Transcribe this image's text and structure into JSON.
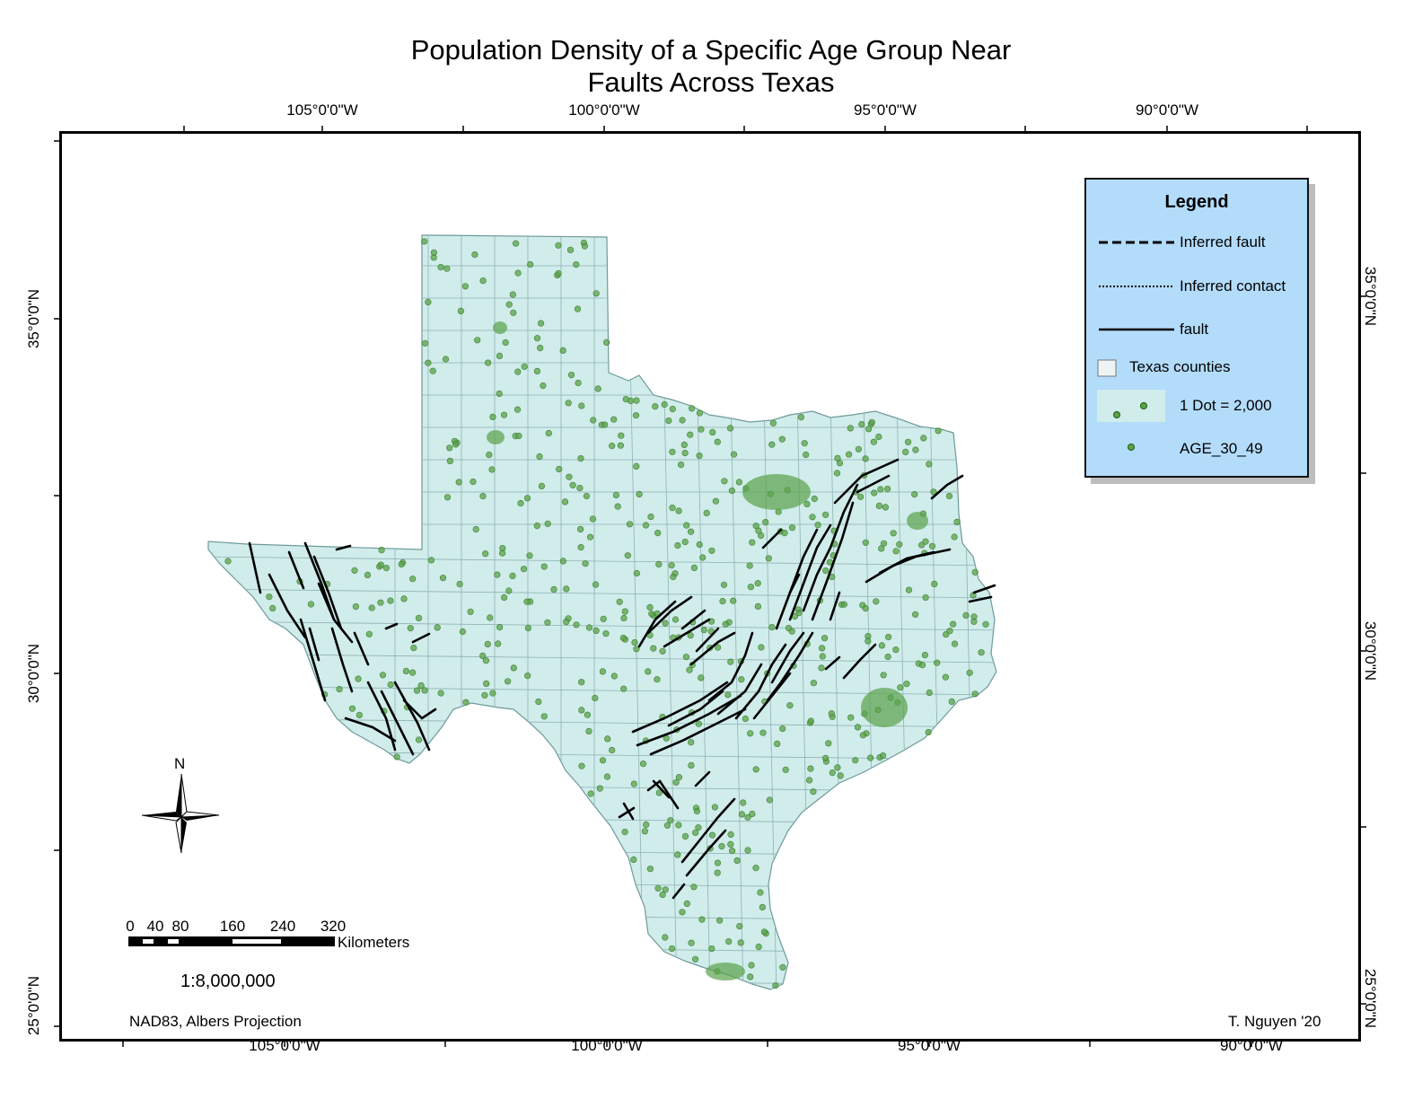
{
  "map": {
    "title_line1": "Population Density of a Specific Age Group Near",
    "title_line2": "Faults Across Texas",
    "lon_labels_top": [
      "105°0'0\"W",
      "100°0'0\"W",
      "95°0'0\"W",
      "90°0'0\"W"
    ],
    "lon_labels_bottom": [
      "105°0'0\"W",
      "100°0'0\"W",
      "95°0'0\"W",
      "90°0'0\"W"
    ],
    "lat_labels_left": [
      "35°0'0\"N",
      "30°0'0\"N",
      "25°0'0\"N"
    ],
    "lat_labels_right": [
      "35°0'0\"N",
      "30°0'0\"N",
      "25°0'0\"N"
    ],
    "north_arrow": "N",
    "scale_bar": {
      "ticks": [
        "0",
        "40",
        "80",
        "160",
        "240",
        "320"
      ],
      "unit": "Kilometers",
      "ratio": "1:8,000,000"
    },
    "projection": "NAD83, Albers Projection",
    "author": "T. Nguyen '20",
    "colors": {
      "land": "#d0eceb",
      "county_line": "#8fb3b3",
      "fault": "#000000",
      "dot": "#4f9a3c",
      "legend_bg": "#b3dcfb"
    }
  },
  "legend": {
    "title": "Legend",
    "items": [
      {
        "label": "Inferred fault",
        "symbol": "dashed-line"
      },
      {
        "label": "Inferred contact",
        "symbol": "dotted-line"
      },
      {
        "label": "fault",
        "symbol": "solid-line"
      },
      {
        "label": "Texas counties",
        "symbol": "polygon"
      },
      {
        "label": "1 Dot = 2,000",
        "symbol": "dot-density"
      },
      {
        "label": "AGE_30_49",
        "symbol": "dot"
      }
    ]
  }
}
